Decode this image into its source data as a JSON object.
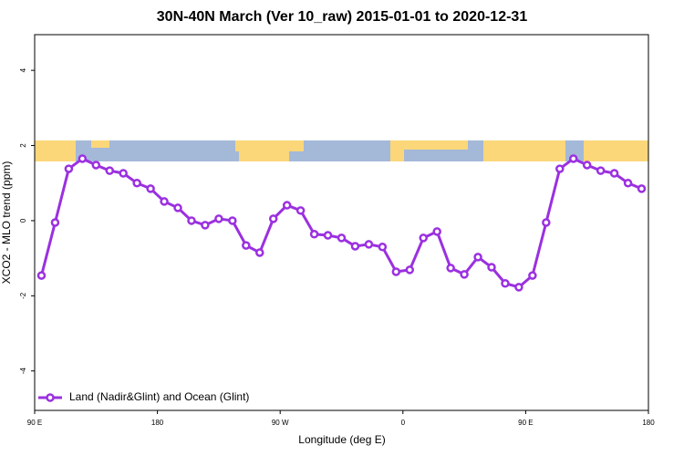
{
  "chart_data": {
    "type": "line",
    "title": "30N-40N March (Ver 10_raw)   2015-01-01 to 2020-12-31",
    "x_label": "Longitude (deg E)",
    "y_label": "XCO2 - MLO trend (ppm)",
    "xlim": [
      90,
      540
    ],
    "xticks": [
      {
        "value": 90,
        "label": "90 E"
      },
      {
        "value": 180,
        "label": "180"
      },
      {
        "value": 270,
        "label": "90 W"
      },
      {
        "value": 360,
        "label": "0"
      },
      {
        "value": 450,
        "label": "90 E"
      },
      {
        "value": 540,
        "label": "180"
      }
    ],
    "ylim": [
      -5.05,
      4.95
    ],
    "yticks": [
      -4,
      -2,
      0,
      2,
      4
    ],
    "legend": "bottom-left",
    "x": [
      95,
      105,
      115,
      125,
      135,
      145,
      155,
      165,
      175,
      185,
      195,
      205,
      215,
      225,
      235,
      245,
      255,
      265,
      275,
      285,
      295,
      305,
      315,
      325,
      335,
      345,
      355,
      365,
      375,
      385,
      395,
      405,
      415,
      425,
      435,
      445,
      455,
      465,
      475,
      485,
      495,
      505,
      515,
      525,
      535
    ],
    "series": [
      {
        "name": "Land (Nadir&Glint) and Ocean (Glint)",
        "color": "#9b30e0",
        "values": [
          -1.46,
          -0.05,
          1.38,
          1.65,
          1.48,
          1.33,
          1.26,
          1.0,
          0.85,
          0.51,
          0.34,
          0.0,
          -0.12,
          0.05,
          0.0,
          -0.66,
          -0.85,
          0.05,
          0.41,
          0.27,
          -0.36,
          -0.39,
          -0.46,
          -0.68,
          -0.63,
          -0.7,
          -1.36,
          -1.31,
          -0.46,
          -0.29,
          -1.26,
          -1.43,
          -0.97,
          -1.24,
          -1.67,
          -1.77,
          -1.46,
          -0.05,
          1.38,
          1.65,
          1.48,
          1.33,
          1.26,
          1.0,
          0.85
        ]
      }
    ]
  }
}
